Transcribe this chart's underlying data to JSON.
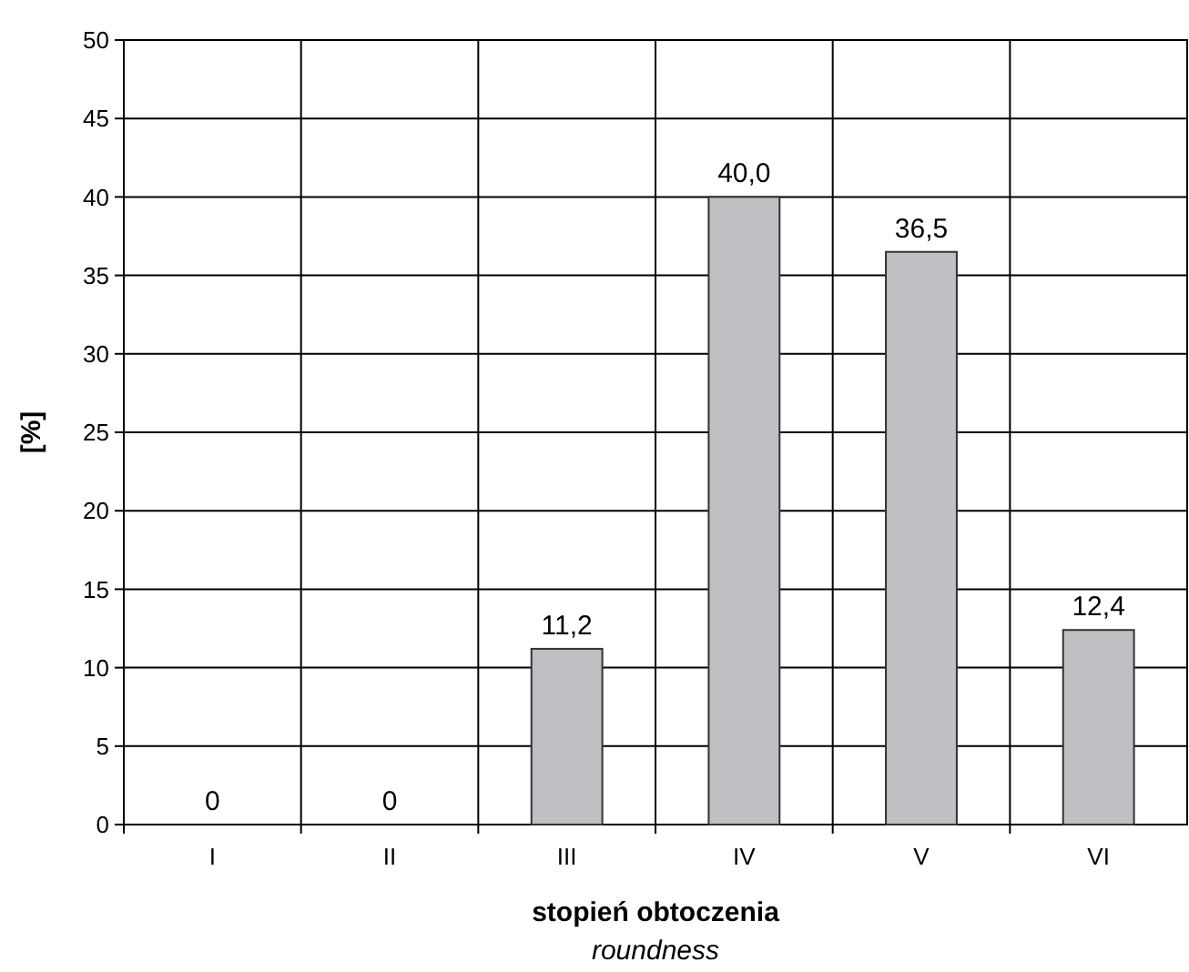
{
  "chart_data": {
    "type": "bar",
    "xlabel": "stopień obtoczenia\nroundness",
    "ylabel": "[%]",
    "categories": [
      "I",
      "II",
      "III",
      "IV",
      "V",
      "VI"
    ],
    "values": [
      0,
      0,
      11.2,
      40.0,
      36.5,
      12.4
    ],
    "value_labels": [
      "0",
      "0",
      "11,2",
      "40,0",
      "36,5",
      "12,4"
    ],
    "color": "#c0c0c4",
    "ylim": [
      0,
      50
    ],
    "yticks": [
      0,
      5,
      10,
      15,
      20,
      25,
      30,
      35,
      40,
      45,
      50
    ],
    "grid": true
  }
}
